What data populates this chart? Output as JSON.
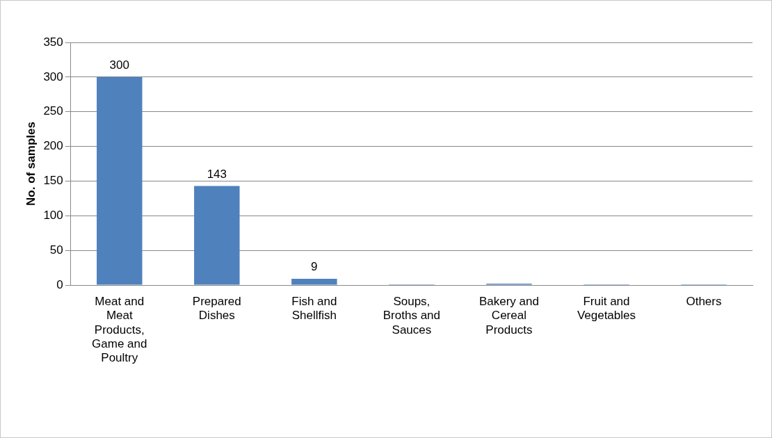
{
  "chart_data": {
    "type": "bar",
    "ylabel": "No. of samples",
    "categories": [
      "Meat and Meat Products, Game and Poultry",
      "Prepared Dishes",
      "Fish and Shellfish",
      "Soups, Broths and Sauces",
      "Bakery  and Cereal Products",
      "Fruit and Vegetables",
      "Others"
    ],
    "values": [
      300,
      143,
      9,
      1,
      2,
      1,
      1
    ],
    "value_labels": [
      "300",
      "143",
      "9",
      null,
      null,
      null,
      null
    ],
    "color": "#4f81bd",
    "ylim": [
      0,
      350
    ],
    "yticks": [
      0,
      50,
      100,
      150,
      200,
      250,
      300,
      350
    ],
    "grid": "y",
    "legend": false
  }
}
